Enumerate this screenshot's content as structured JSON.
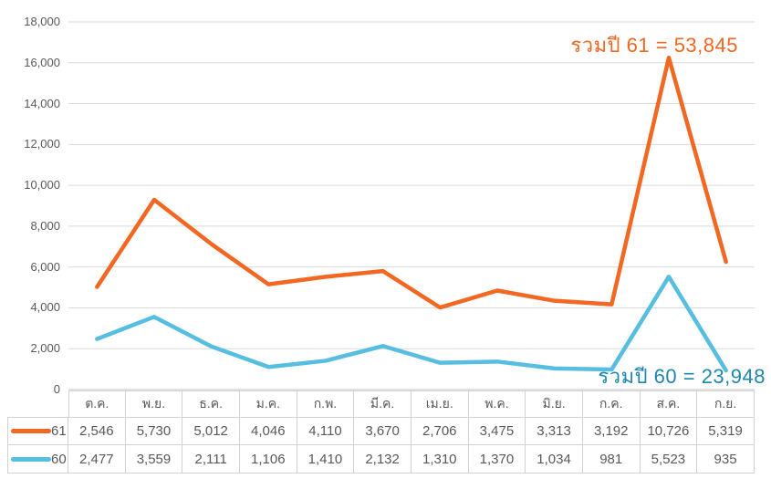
{
  "chart_data": {
    "type": "line",
    "stacked": true,
    "stack_order": [
      "60",
      "61"
    ],
    "title": "",
    "xlabel": "",
    "ylabel": "",
    "grid": true,
    "legend_position": "data-table-left",
    "categories": [
      "ต.ค.",
      "พ.ย.",
      "ธ.ค.",
      "ม.ค.",
      "ก.พ.",
      "มี.ค.",
      "เม.ย.",
      "พ.ค.",
      "มิ.ย.",
      "ก.ค.",
      "ส.ค.",
      "ก.ย."
    ],
    "series": [
      {
        "name": "61",
        "color": "#F26722",
        "values": [
          2546,
          5730,
          5012,
          4046,
          4110,
          3670,
          2706,
          3475,
          3313,
          3192,
          10726,
          5319
        ],
        "values_formatted": [
          "2,546",
          "5,730",
          "5,012",
          "4,046",
          "4,110",
          "3,670",
          "2,706",
          "3,475",
          "3,313",
          "3,192",
          "10,726",
          "5,319"
        ],
        "total": 53845
      },
      {
        "name": "60",
        "color": "#56BEE0",
        "values": [
          2477,
          3559,
          2111,
          1106,
          1410,
          2132,
          1310,
          1370,
          1034,
          981,
          5523,
          935
        ],
        "values_formatted": [
          "2,477",
          "3,559",
          "2,111",
          "1,106",
          "1,410",
          "2,132",
          "1,310",
          "1,370",
          "1,034",
          "981",
          "5,523",
          "935"
        ],
        "total": 23948
      }
    ],
    "y_axis": {
      "min": 0,
      "max": 18000,
      "step": 2000,
      "tick_labels": [
        "0",
        "2,000",
        "4,000",
        "6,000",
        "8,000",
        "10,000",
        "12,000",
        "14,000",
        "16,000",
        "18,000"
      ]
    },
    "annotations": [
      {
        "text": "รวมปี 61 = 53,845",
        "color": "#F26722"
      },
      {
        "text": "รวมปี 60 = 23,948",
        "color": "#1F86B0"
      }
    ]
  },
  "colors": {
    "gridline": "#D9D9D9",
    "axis_line": "#C6C6C6",
    "tick_text": "#595959",
    "table_border": "#D2D2D2",
    "table_text": "#595959",
    "background": "#FFFFFF"
  }
}
